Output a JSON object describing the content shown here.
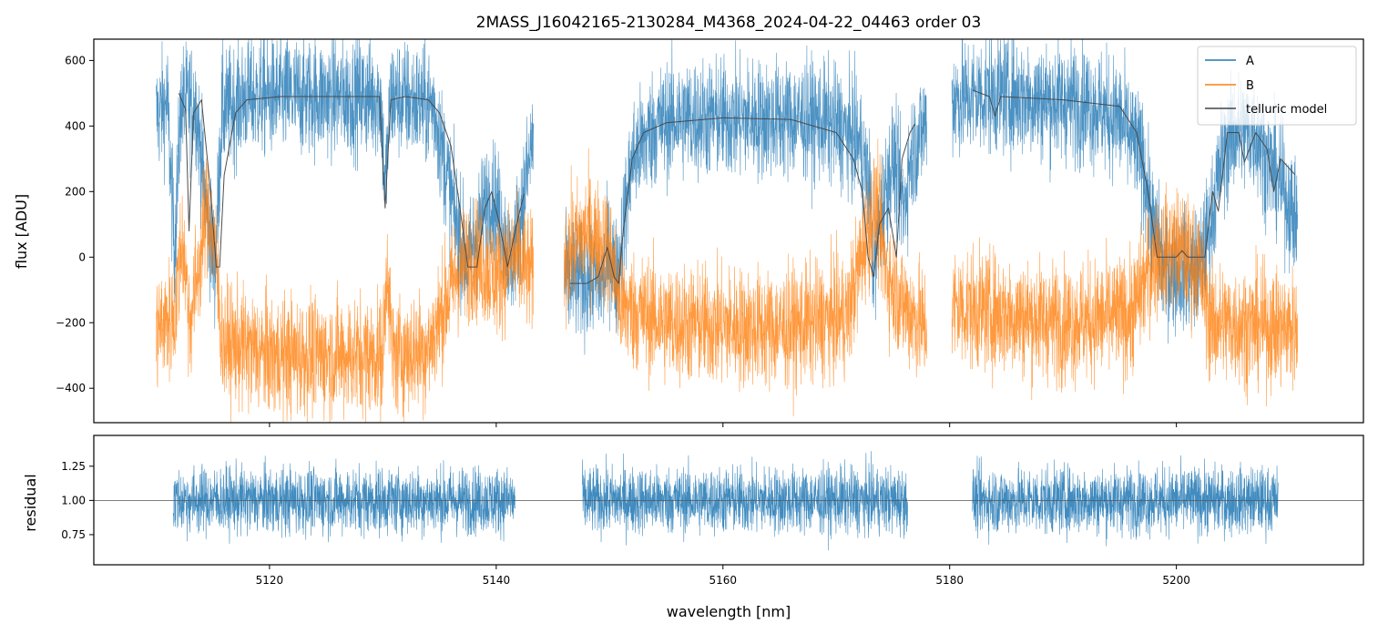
{
  "chart_data": [
    {
      "type": "line",
      "title": "2MASS_J16042165-2130284_M4368_2024-04-22_04463  order 03",
      "xlabel": "",
      "ylabel": "flux [ADU]",
      "xlim": [
        5104.5,
        5216.5
      ],
      "ylim": [
        -505,
        665
      ],
      "xticks": [
        5120,
        5140,
        5160,
        5180,
        5200
      ],
      "yticks": [
        -400,
        -200,
        0,
        200,
        400,
        600
      ],
      "yticklabels": [
        "−400",
        "−200",
        "0",
        "200",
        "400",
        "600"
      ],
      "legend_position": "top-right",
      "segments": [
        [
          5110.0,
          5143.3
        ],
        [
          5146.0,
          5178.0
        ],
        [
          5180.2,
          5210.7
        ]
      ],
      "series": [
        {
          "name": "A",
          "color": "#1f77b4",
          "noise": 90,
          "profile": [
            [
              5110.0,
              430
            ],
            [
              5111.0,
              470
            ],
            [
              5111.6,
              20
            ],
            [
              5112.2,
              470
            ],
            [
              5113.5,
              470
            ],
            [
              5114.5,
              120
            ],
            [
              5115.2,
              -30
            ],
            [
              5115.8,
              440
            ],
            [
              5118.0,
              490
            ],
            [
              5129.8,
              490
            ],
            [
              5130.2,
              200
            ],
            [
              5130.7,
              490
            ],
            [
              5134.5,
              460
            ],
            [
              5136.5,
              100
            ],
            [
              5137.5,
              -30
            ],
            [
              5138.5,
              100
            ],
            [
              5139.5,
              200
            ],
            [
              5140.5,
              100
            ],
            [
              5141.3,
              -30
            ],
            [
              5142.5,
              200
            ],
            [
              5143.3,
              380
            ],
            [
              5146.0,
              -70
            ],
            [
              5149.5,
              -70
            ],
            [
              5150.0,
              20
            ],
            [
              5150.6,
              -70
            ],
            [
              5152.0,
              300
            ],
            [
              5154.0,
              400
            ],
            [
              5156.0,
              425
            ],
            [
              5168.0,
              420
            ],
            [
              5170.0,
              400
            ],
            [
              5172.0,
              350
            ],
            [
              5173.0,
              200
            ],
            [
              5173.3,
              -60
            ],
            [
              5174.0,
              150
            ],
            [
              5175.0,
              300
            ],
            [
              5176.0,
              150
            ],
            [
              5176.5,
              300
            ],
            [
              5178.0,
              420
            ],
            [
              5180.2,
              480
            ],
            [
              5184.0,
              500
            ],
            [
              5188.0,
              480
            ],
            [
              5192.0,
              470
            ],
            [
              5195.0,
              420
            ],
            [
              5197.0,
              300
            ],
            [
              5198.0,
              80
            ],
            [
              5199.0,
              -40
            ],
            [
              5202.0,
              -40
            ],
            [
              5203.0,
              100
            ],
            [
              5204.0,
              300
            ],
            [
              5205.0,
              380
            ],
            [
              5207.0,
              380
            ],
            [
              5208.0,
              300
            ],
            [
              5209.5,
              200
            ],
            [
              5210.7,
              100
            ]
          ]
        },
        {
          "name": "B",
          "color": "#ff7f0e",
          "noise": 90,
          "profile": [
            [
              5110.0,
              -220
            ],
            [
              5111.6,
              -180
            ],
            [
              5112.3,
              60
            ],
            [
              5113.0,
              -200
            ],
            [
              5114.5,
              150
            ],
            [
              5115.2,
              30
            ],
            [
              5115.8,
              -260
            ],
            [
              5120.0,
              -300
            ],
            [
              5130.0,
              -300
            ],
            [
              5130.4,
              0
            ],
            [
              5130.8,
              -300
            ],
            [
              5134.0,
              -280
            ],
            [
              5136.5,
              -50
            ],
            [
              5138.0,
              0
            ],
            [
              5140.0,
              -60
            ],
            [
              5141.5,
              0
            ],
            [
              5143.3,
              -60
            ],
            [
              5146.0,
              0
            ],
            [
              5148.0,
              80
            ],
            [
              5150.0,
              20
            ],
            [
              5151.0,
              -150
            ],
            [
              5155.0,
              -200
            ],
            [
              5165.0,
              -220
            ],
            [
              5171.0,
              -180
            ],
            [
              5172.5,
              50
            ],
            [
              5173.5,
              150
            ],
            [
              5174.5,
              -50
            ],
            [
              5176.0,
              -150
            ],
            [
              5178.0,
              -220
            ],
            [
              5180.2,
              -150
            ],
            [
              5190.0,
              -200
            ],
            [
              5196.0,
              -180
            ],
            [
              5198.0,
              0
            ],
            [
              5200.0,
              30
            ],
            [
              5202.0,
              -30
            ],
            [
              5203.0,
              -200
            ],
            [
              5210.7,
              -220
            ]
          ]
        },
        {
          "name": "telluric model",
          "color": "#444444",
          "segments": [
            [
              5112.0,
              5142.5
            ],
            [
              5146.5,
              5177.0
            ],
            [
              5182.0,
              5210.5
            ]
          ],
          "profile": [
            [
              5112.0,
              500
            ],
            [
              5112.6,
              450
            ],
            [
              5112.9,
              80
            ],
            [
              5113.3,
              440
            ],
            [
              5114.0,
              480
            ],
            [
              5114.8,
              200
            ],
            [
              5115.3,
              -30
            ],
            [
              5115.6,
              -30
            ],
            [
              5116.0,
              250
            ],
            [
              5117.0,
              440
            ],
            [
              5118.0,
              480
            ],
            [
              5121.0,
              490
            ],
            [
              5129.7,
              490
            ],
            [
              5130.2,
              150
            ],
            [
              5130.7,
              480
            ],
            [
              5132.0,
              490
            ],
            [
              5134.0,
              480
            ],
            [
              5135.0,
              440
            ],
            [
              5136.0,
              340
            ],
            [
              5136.8,
              150
            ],
            [
              5137.5,
              -30
            ],
            [
              5138.3,
              -30
            ],
            [
              5139.0,
              150
            ],
            [
              5139.6,
              200
            ],
            [
              5140.3,
              100
            ],
            [
              5141.0,
              -30
            ],
            [
              5141.8,
              100
            ],
            [
              5142.5,
              200
            ],
            [
              5146.5,
              -80
            ],
            [
              5148.0,
              -80
            ],
            [
              5149.0,
              -60
            ],
            [
              5149.8,
              30
            ],
            [
              5150.4,
              -60
            ],
            [
              5150.8,
              -80
            ],
            [
              5151.2,
              80
            ],
            [
              5152.0,
              300
            ],
            [
              5153.0,
              380
            ],
            [
              5155.0,
              410
            ],
            [
              5160.0,
              425
            ],
            [
              5166.0,
              420
            ],
            [
              5168.0,
              400
            ],
            [
              5170.0,
              380
            ],
            [
              5171.5,
              300
            ],
            [
              5172.3,
              200
            ],
            [
              5172.8,
              0
            ],
            [
              5173.3,
              -60
            ],
            [
              5173.8,
              100
            ],
            [
              5174.6,
              150
            ],
            [
              5175.3,
              0
            ],
            [
              5175.8,
              300
            ],
            [
              5176.5,
              380
            ],
            [
              5177.0,
              410
            ],
            [
              5182.0,
              510
            ],
            [
              5183.5,
              490
            ],
            [
              5184.0,
              430
            ],
            [
              5184.5,
              490
            ],
            [
              5190.0,
              480
            ],
            [
              5195.0,
              460
            ],
            [
              5196.5,
              380
            ],
            [
              5197.5,
              200
            ],
            [
              5198.3,
              0
            ],
            [
              5200.0,
              0
            ],
            [
              5200.5,
              20
            ],
            [
              5201.0,
              0
            ],
            [
              5202.5,
              0
            ],
            [
              5203.2,
              200
            ],
            [
              5203.7,
              140
            ],
            [
              5204.5,
              380
            ],
            [
              5205.5,
              380
            ],
            [
              5206.0,
              290
            ],
            [
              5207.0,
              380
            ],
            [
              5208.0,
              330
            ],
            [
              5208.6,
              200
            ],
            [
              5209.2,
              300
            ],
            [
              5210.5,
              250
            ]
          ]
        }
      ]
    },
    {
      "type": "line",
      "title": "",
      "xlabel": "wavelength [nm]",
      "ylabel": "residual",
      "xlim": [
        5104.5,
        5216.5
      ],
      "ylim": [
        0.53,
        1.475
      ],
      "xticks": [
        5120,
        5140,
        5160,
        5180,
        5200
      ],
      "xticklabels": [
        "5120",
        "5140",
        "5160",
        "5180",
        "5200"
      ],
      "yticks": [
        0.75,
        1.0,
        1.25
      ],
      "yticklabels": [
        "0.75",
        "1.00",
        "1.25"
      ],
      "reference_line": 1.0,
      "series": [
        {
          "color": "#1f77b4",
          "center": 1.0,
          "noise": 0.12,
          "segments": [
            [
              5111.5,
              5141.7
            ],
            [
              5147.6,
              5176.3
            ],
            [
              5182.0,
              5209.0
            ]
          ]
        }
      ]
    }
  ]
}
